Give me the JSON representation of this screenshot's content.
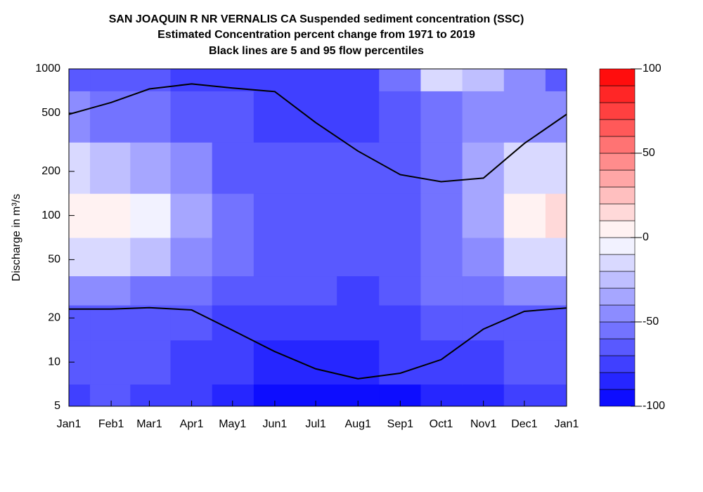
{
  "chart_data": {
    "type": "contour",
    "title": [
      "SAN JOAQUIN R NR VERNALIS CA  Suspended sediment concentration (SSC)",
      "Estimated Concentration percent change from 1971 to 2019",
      "Black lines are 5 and 95 flow percentiles"
    ],
    "ylabel": "Discharge in m³/s",
    "xlim": [
      0,
      365
    ],
    "xticks": [
      {
        "value": 0,
        "label": "Jan1"
      },
      {
        "value": 31,
        "label": "Feb1"
      },
      {
        "value": 59,
        "label": "Mar1"
      },
      {
        "value": 90,
        "label": "Apr1"
      },
      {
        "value": 120,
        "label": "May1"
      },
      {
        "value": 151,
        "label": "Jun1"
      },
      {
        "value": 181,
        "label": "Jul1"
      },
      {
        "value": 212,
        "label": "Aug1"
      },
      {
        "value": 243,
        "label": "Sep1"
      },
      {
        "value": 273,
        "label": "Oct1"
      },
      {
        "value": 304,
        "label": "Nov1"
      },
      {
        "value": 334,
        "label": "Dec1"
      },
      {
        "value": 365,
        "label": "Jan1"
      }
    ],
    "ylim": [
      5,
      1000
    ],
    "yscale": "log",
    "yticks": [
      5,
      10,
      20,
      50,
      100,
      200,
      500,
      1000
    ],
    "zlim": [
      -100,
      100
    ],
    "zticks": [
      100,
      50,
      0,
      -50,
      -100
    ],
    "levels": [
      -100,
      -90,
      -80,
      -70,
      -60,
      -50,
      -40,
      -30,
      -20,
      -10,
      0,
      10,
      20,
      30,
      40,
      50,
      60,
      70,
      80,
      90,
      100
    ],
    "colors": {
      "low": "#0000ff",
      "mid": "#ffffff",
      "high": "#ff0000"
    },
    "grid_x": [
      0,
      31,
      59,
      90,
      120,
      151,
      181,
      212,
      243,
      273,
      304,
      334,
      365
    ],
    "grid_y": [
      5,
      10,
      20,
      30,
      50,
      100,
      200,
      500,
      1000
    ],
    "z": [
      [
        -70,
        -65,
        -70,
        -75,
        -80,
        -90,
        -90,
        -90,
        -90,
        -85,
        -80,
        -70,
        -70
      ],
      [
        -65,
        -60,
        -65,
        -70,
        -75,
        -80,
        -80,
        -80,
        -75,
        -75,
        -70,
        -65,
        -65
      ],
      [
        -60,
        -60,
        -60,
        -65,
        -70,
        -70,
        -75,
        -75,
        -70,
        -65,
        -60,
        -60,
        -60
      ],
      [
        -45,
        -45,
        -50,
        -55,
        -60,
        -65,
        -65,
        -70,
        -65,
        -55,
        -55,
        -45,
        -45
      ],
      [
        -15,
        -15,
        -25,
        -40,
        -55,
        -65,
        -65,
        -65,
        -60,
        -50,
        -40,
        -15,
        -15
      ],
      [
        10,
        5,
        0,
        -30,
        -55,
        -65,
        -65,
        -65,
        -60,
        -50,
        -30,
        10,
        20
      ],
      [
        -15,
        -20,
        -30,
        -45,
        -60,
        -65,
        -65,
        -65,
        -60,
        -50,
        -35,
        -15,
        -15
      ],
      [
        -45,
        -50,
        -55,
        -60,
        -65,
        -70,
        -70,
        -70,
        -65,
        -50,
        -45,
        -40,
        -45
      ],
      [
        -60,
        -60,
        -65,
        -70,
        -70,
        -75,
        -75,
        -75,
        -55,
        -10,
        -25,
        -45,
        -60
      ]
    ],
    "series": [
      {
        "color": "#000000",
        "x": [
          0,
          31,
          59,
          90,
          120,
          151,
          181,
          212,
          243,
          273,
          304,
          334,
          365
        ],
        "values": [
          490,
          590,
          730,
          790,
          740,
          700,
          430,
          275,
          190,
          170,
          180,
          310,
          490
        ]
      },
      {
        "color": "#000000",
        "x": [
          0,
          31,
          59,
          90,
          120,
          151,
          181,
          212,
          243,
          273,
          304,
          334,
          365
        ],
        "values": [
          23,
          23,
          23.5,
          22.7,
          16.5,
          11.8,
          9,
          7.7,
          8.4,
          10.4,
          16.8,
          22.2,
          23.4
        ]
      }
    ]
  }
}
